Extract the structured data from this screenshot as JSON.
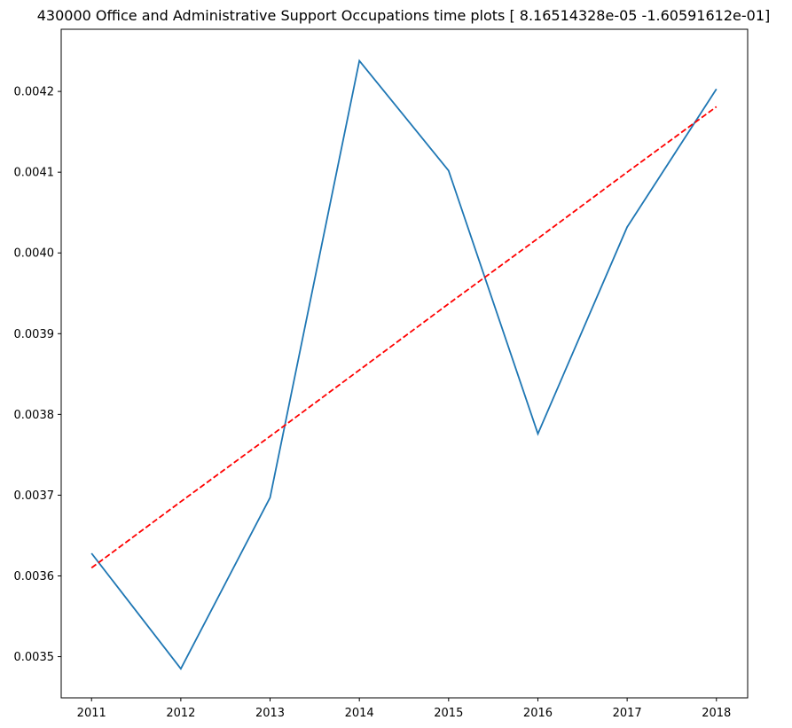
{
  "chart_data": {
    "type": "line",
    "title": "430000 Office and Administrative Support Occupations time plots [ 8.16514328e-05 -1.60591612e-01]",
    "xlabel": "",
    "ylabel": "",
    "x": [
      2011,
      2012,
      2013,
      2014,
      2015,
      2016,
      2017,
      2018
    ],
    "xlim": [
      2010.66,
      2018.35
    ],
    "ylim": [
      0.003449,
      0.004277
    ],
    "x_ticks": [
      "2011",
      "2012",
      "2013",
      "2014",
      "2015",
      "2016",
      "2017",
      "2018"
    ],
    "y_ticks": [
      "0.0035",
      "0.0036",
      "0.0037",
      "0.0038",
      "0.0039",
      "0.0040",
      "0.0041",
      "0.0042"
    ],
    "y_tick_values": [
      0.0035,
      0.0036,
      0.0037,
      0.0038,
      0.0039,
      0.004,
      0.0041,
      0.0042
    ],
    "grid": false,
    "legend": "none",
    "series": [
      {
        "style": "solid",
        "color": "#1f77b4",
        "values": [
          0.003628,
          0.003485,
          0.003697,
          0.004238,
          0.004102,
          0.003776,
          0.004032,
          0.004203
        ]
      },
      {
        "style": "dashed",
        "color": "#ff0000",
        "values": [
          0.00361,
          0.003692,
          0.003773,
          0.003855,
          0.003937,
          0.004018,
          0.0041,
          0.004181
        ]
      }
    ]
  }
}
